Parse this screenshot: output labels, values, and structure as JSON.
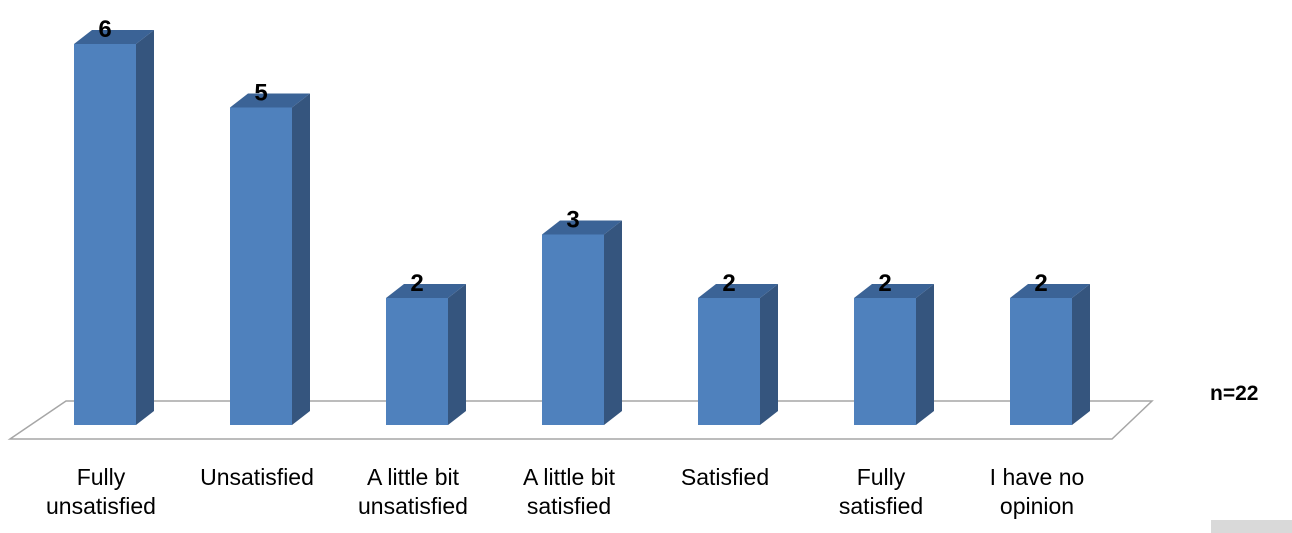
{
  "chart_data": {
    "type": "bar",
    "categories": [
      [
        "Fully",
        "unsatisfied"
      ],
      [
        "Unsatisfied"
      ],
      [
        "A little bit",
        "unsatisfied"
      ],
      [
        "A little bit",
        "satisfied"
      ],
      [
        "Satisfied"
      ],
      [
        "Fully",
        "satisfied"
      ],
      [
        "I have no",
        "opinion"
      ]
    ],
    "values": [
      6,
      5,
      2,
      3,
      2,
      2,
      2
    ],
    "ylim": [
      0,
      6
    ],
    "grid": false,
    "style": "3d-column",
    "colors": {
      "front": "#4f81bd",
      "side": "#35557e",
      "top": "#3b6396",
      "floor_stroke": "#a6a6a6"
    },
    "annotation": "n=22"
  }
}
